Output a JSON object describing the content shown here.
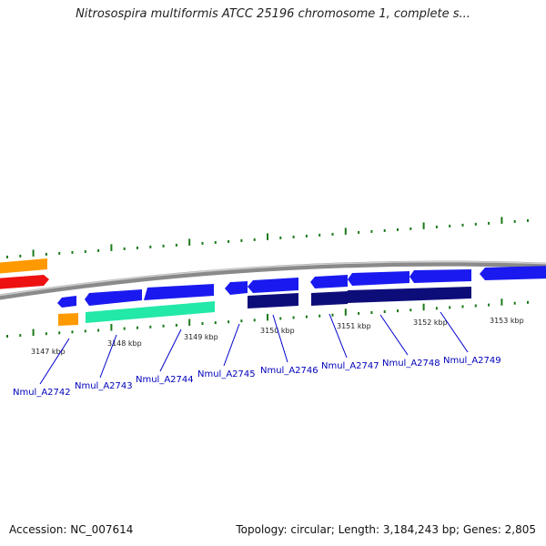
{
  "title": "Nitrosospira multiformis ATCC 25196 chromosome 1, complete s...",
  "footer": {
    "accession": "Accession: NC_007614",
    "topology": "Topology: circular; Length: 3,184,243 bp; Genes: 2,805"
  },
  "colors": {
    "backbone": "#8a8a8a",
    "cds": "#1a1af0",
    "cds_dark": "#0d0d7a",
    "gene_orange": "#ff9900",
    "gene_red": "#ee1111",
    "gene_green": "#22e8a8",
    "ticks": "#1a7a1a",
    "label": "#0000bb"
  },
  "kbp_labels": [
    "3147 kbp",
    "3148 kbp",
    "3149 kbp",
    "3150 kbp",
    "3151 kbp",
    "3152 kbp",
    "3153 kbp"
  ],
  "locus_tags": [
    "Nmul_A2742",
    "Nmul_A2743",
    "Nmul_A2744",
    "Nmul_A2745",
    "Nmul_A2746",
    "Nmul_A2747",
    "Nmul_A2748",
    "Nmul_A2749"
  ]
}
